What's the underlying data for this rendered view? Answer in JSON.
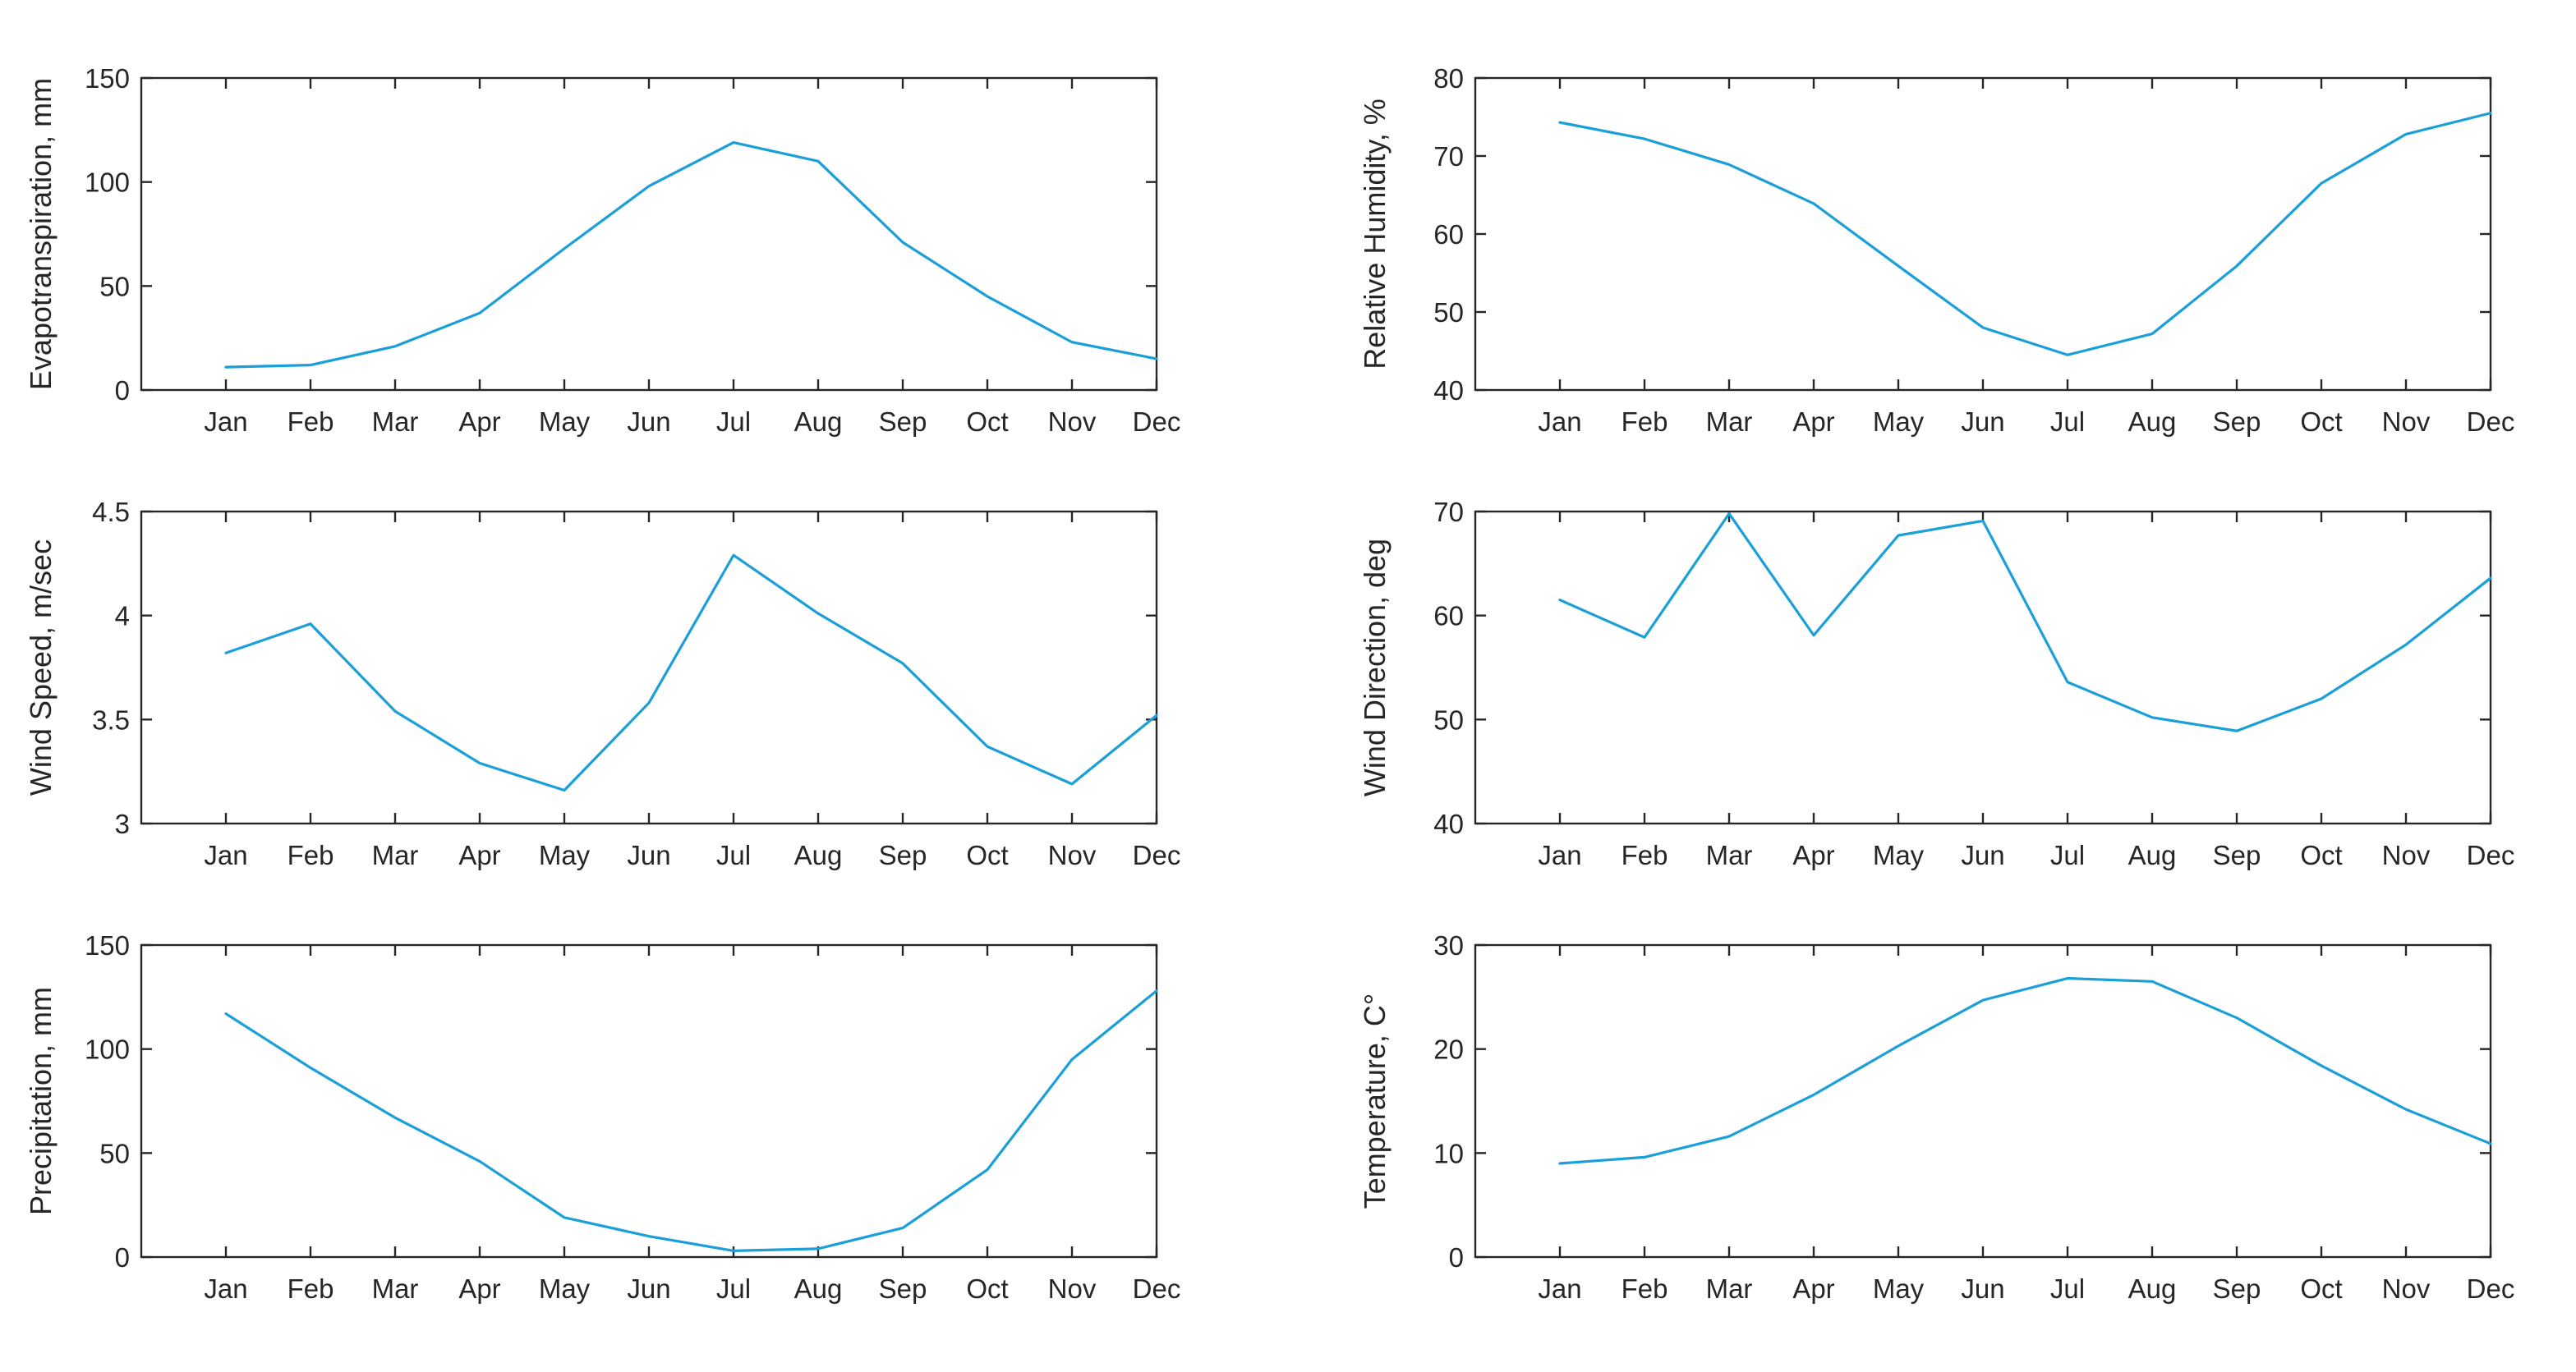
{
  "colors": {
    "line": "#1a9fd9",
    "axis": "#262626",
    "background": "#ffffff"
  },
  "chart_data": [
    {
      "type": "line",
      "title": "",
      "xlabel": "",
      "ylabel": "Evapotranspiration, mm",
      "categories": [
        "Jan",
        "Feb",
        "Mar",
        "Apr",
        "May",
        "Jun",
        "Jul",
        "Aug",
        "Sep",
        "Oct",
        "Nov",
        "Dec"
      ],
      "values": [
        11,
        12,
        21,
        37,
        68,
        98,
        119,
        110,
        71,
        45,
        23,
        15
      ],
      "ylim": [
        0,
        150
      ],
      "yticks": [
        0,
        50,
        100,
        150
      ],
      "ytick_labels": [
        "0",
        "50",
        "100",
        "150"
      ]
    },
    {
      "type": "line",
      "title": "",
      "xlabel": "",
      "ylabel": "Relative Humidity, %",
      "categories": [
        "Jan",
        "Feb",
        "Mar",
        "Apr",
        "May",
        "Jun",
        "Jul",
        "Aug",
        "Sep",
        "Oct",
        "Nov",
        "Dec"
      ],
      "values": [
        74.3,
        72.2,
        68.9,
        63.9,
        55.9,
        48.0,
        44.5,
        47.2,
        55.9,
        66.5,
        72.8,
        75.5
      ],
      "ylim": [
        40,
        80
      ],
      "yticks": [
        40,
        50,
        60,
        70,
        80
      ],
      "ytick_labels": [
        "40",
        "50",
        "60",
        "70",
        "80"
      ]
    },
    {
      "type": "line",
      "title": "",
      "xlabel": "",
      "ylabel": "Wind Speed, m/sec",
      "categories": [
        "Jan",
        "Feb",
        "Mar",
        "Apr",
        "May",
        "Jun",
        "Jul",
        "Aug",
        "Sep",
        "Oct",
        "Nov",
        "Dec"
      ],
      "values": [
        3.82,
        3.96,
        3.54,
        3.29,
        3.16,
        3.58,
        4.29,
        4.01,
        3.77,
        3.37,
        3.19,
        3.52
      ],
      "ylim": [
        3,
        4.5
      ],
      "yticks": [
        3,
        3.5,
        4,
        4.5
      ],
      "ytick_labels": [
        "3",
        "3.5",
        "4",
        "4.5"
      ]
    },
    {
      "type": "line",
      "title": "",
      "xlabel": "",
      "ylabel": "Wind Direction, deg",
      "categories": [
        "Jan",
        "Feb",
        "Mar",
        "Apr",
        "May",
        "Jun",
        "Jul",
        "Aug",
        "Sep",
        "Oct",
        "Nov",
        "Dec"
      ],
      "values": [
        61.5,
        57.9,
        69.8,
        58.1,
        67.7,
        69.1,
        53.6,
        50.2,
        48.9,
        52.0,
        57.2,
        63.6
      ],
      "ylim": [
        40,
        70
      ],
      "yticks": [
        40,
        50,
        60,
        70
      ],
      "ytick_labels": [
        "40",
        "50",
        "60",
        "70"
      ]
    },
    {
      "type": "line",
      "title": "",
      "xlabel": "",
      "ylabel": "Precipitation, mm",
      "categories": [
        "Jan",
        "Feb",
        "Mar",
        "Apr",
        "May",
        "Jun",
        "Jul",
        "Aug",
        "Sep",
        "Oct",
        "Nov",
        "Dec"
      ],
      "values": [
        117,
        91,
        67,
        46,
        19,
        10,
        3,
        4,
        14,
        42,
        95,
        128
      ],
      "ylim": [
        0,
        150
      ],
      "yticks": [
        0,
        50,
        100,
        150
      ],
      "ytick_labels": [
        "0",
        "50",
        "100",
        "150"
      ]
    },
    {
      "type": "line",
      "title": "",
      "xlabel": "",
      "ylabel": "Temperature, C°",
      "categories": [
        "Jan",
        "Feb",
        "Mar",
        "Apr",
        "May",
        "Jun",
        "Jul",
        "Aug",
        "Sep",
        "Oct",
        "Nov",
        "Dec"
      ],
      "values": [
        9.0,
        9.6,
        11.6,
        15.6,
        20.3,
        24.7,
        26.8,
        26.5,
        23.0,
        18.4,
        14.2,
        10.9
      ],
      "ylim": [
        0,
        30
      ],
      "yticks": [
        0,
        10,
        20,
        30
      ],
      "ytick_labels": [
        "0",
        "10",
        "20",
        "30"
      ]
    }
  ]
}
